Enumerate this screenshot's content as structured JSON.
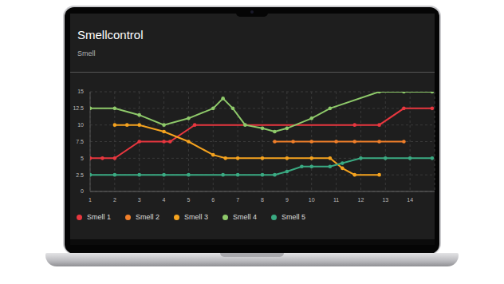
{
  "chart_data": {
    "type": "line",
    "title": "Smellcontrol",
    "subtitle": "Smell",
    "xlim": [
      1,
      15
    ],
    "xticks": [
      1,
      2,
      3,
      4,
      5,
      6,
      7,
      8,
      9,
      10,
      11,
      12,
      13,
      14
    ],
    "ylim": [
      0,
      15
    ],
    "yticks": [
      0,
      2.5,
      5,
      7.5,
      10,
      12.5,
      15
    ],
    "grid": true,
    "legend": "bottom left",
    "marker": "circle",
    "series": [
      {
        "name": "Smell 1",
        "color": "#e8373f",
        "x": [
          1,
          1.5,
          2,
          3,
          4,
          4.25,
          5.25,
          11.75,
          12.75,
          13.75,
          14.9
        ],
        "values": [
          5,
          5,
          5,
          7.5,
          7.5,
          7.5,
          10,
          10,
          10,
          12.5,
          12.5
        ]
      },
      {
        "name": "Smell 2",
        "color": "#f07f2a",
        "x": [
          8.5,
          9.25,
          10,
          11,
          11.75,
          12.75,
          13.75
        ],
        "values": [
          7.5,
          7.5,
          7.5,
          7.5,
          7.5,
          7.5,
          7.5
        ]
      },
      {
        "name": "Smell 3",
        "color": "#f5a31f",
        "x": [
          2,
          2.5,
          3,
          4,
          5,
          6,
          6.5,
          7,
          8,
          9,
          10,
          10.75,
          11.25,
          11.75,
          12.75
        ],
        "values": [
          10,
          10,
          10,
          9,
          7.5,
          5.5,
          5,
          5,
          5,
          5,
          5,
          5,
          3.5,
          2.5,
          2.5
        ]
      },
      {
        "name": "Smell 4",
        "color": "#8ec96a",
        "x": [
          1,
          2,
          3,
          4,
          5,
          6,
          6.4,
          6.8,
          7.3,
          8,
          8.5,
          9,
          10,
          10.75,
          12.75,
          13.75,
          14.9
        ],
        "values": [
          12.5,
          12.5,
          11.5,
          10,
          11,
          12.5,
          14,
          12.5,
          10,
          9.5,
          9,
          9.5,
          11,
          12.5,
          15,
          15,
          15
        ]
      },
      {
        "name": "Smell 5",
        "color": "#3aaa82",
        "x": [
          1,
          2,
          3,
          4,
          5,
          6.4,
          7,
          8,
          8.5,
          9,
          9.6,
          10,
          10.75,
          11.25,
          12,
          13,
          14,
          14.9
        ],
        "values": [
          2.5,
          2.5,
          2.5,
          2.5,
          2.5,
          2.5,
          2.5,
          2.5,
          2.5,
          3,
          3.75,
          3.75,
          3.75,
          4.25,
          5,
          5,
          5,
          5
        ]
      }
    ]
  }
}
